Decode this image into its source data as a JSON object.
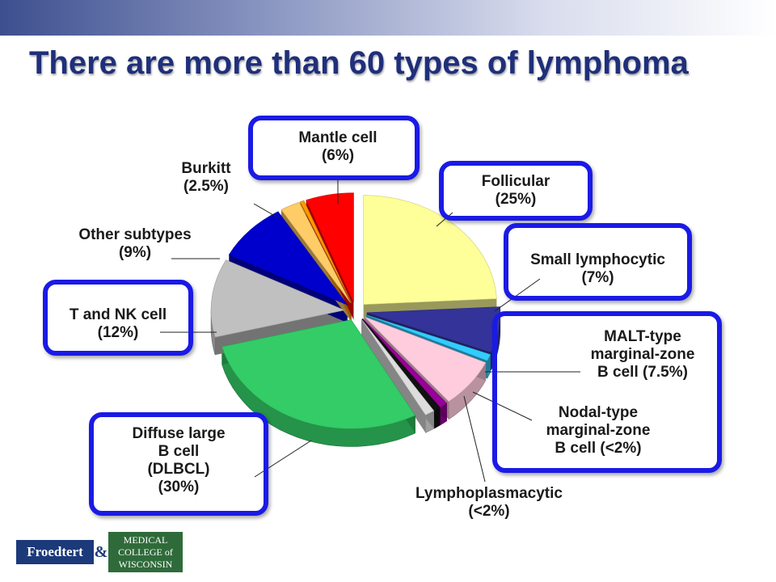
{
  "title": "There are more than 60 types of lymphoma",
  "colors": {
    "title": "#1f2f7a",
    "box_border": "#1a1ae6"
  },
  "logo": {
    "left_text": "Froedtert",
    "ampersand": "&",
    "right_text": "MEDICAL\nCOLLEGE of\nWISCONSIN"
  },
  "chart_data": {
    "type": "pie",
    "style": "3d-exploded",
    "title": "",
    "slices": [
      {
        "label_lines": [
          "Follicular",
          "(25%)"
        ],
        "value": 25,
        "color": "#ffff99",
        "highlighted": true
      },
      {
        "label_lines": [
          "Small lymphocytic",
          "(7%)"
        ],
        "value": 7,
        "color": "#333399",
        "highlighted": true
      },
      {
        "label_lines": [
          "",
          ""
        ],
        "value": 1,
        "color": "#33ccff",
        "highlighted": false
      },
      {
        "label_lines": [
          "MALT-type",
          "marginal-zone",
          "B cell (7.5%)"
        ],
        "value": 7.5,
        "color": "#ffccdd",
        "highlighted": true
      },
      {
        "label_lines": [
          "Nodal-type",
          "marginal-zone",
          "B cell (<2%)"
        ],
        "value": 1,
        "color": "#990099",
        "highlighted": true
      },
      {
        "label_lines": [
          "",
          ""
        ],
        "value": 0.8,
        "color": "#111111",
        "highlighted": false
      },
      {
        "label_lines": [
          "Lymphoplasmacytic",
          "(<2%)"
        ],
        "value": 1.2,
        "color": "#dddddd",
        "highlighted": false
      },
      {
        "label_lines": [
          "Diffuse large",
          "B cell",
          "(DLBCL)",
          "(30%)"
        ],
        "value": 30,
        "color": "#33cc66",
        "highlighted": true
      },
      {
        "label_lines": [
          "T and NK cell",
          "(12%)"
        ],
        "value": 12,
        "color": "#c0c0c0",
        "highlighted": true
      },
      {
        "label_lines": [
          "Other subtypes",
          "(9%)"
        ],
        "value": 9,
        "color": "#0000cc",
        "highlighted": false
      },
      {
        "label_lines": [
          "Burkitt",
          "(2.5%)"
        ],
        "value": 2.5,
        "color": "#ffcc66",
        "highlighted": false
      },
      {
        "label_lines": [
          "",
          ""
        ],
        "value": 0.5,
        "color": "#ff9900",
        "highlighted": false
      },
      {
        "label_lines": [
          "Mantle cell",
          "(6%)"
        ],
        "value": 6,
        "color": "#ff0000",
        "highlighted": true
      }
    ]
  }
}
